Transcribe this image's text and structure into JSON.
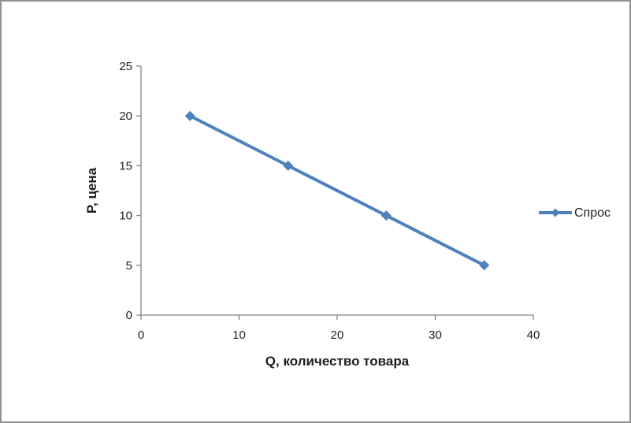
{
  "chart_data": {
    "type": "line",
    "series": [
      {
        "name": "Спрос",
        "x": [
          5,
          15,
          25,
          35
        ],
        "y": [
          20,
          15,
          10,
          5
        ],
        "color": "#4F81BD",
        "marker": "diamond",
        "line_width": 4
      }
    ],
    "xlabel": "Q, количество товара",
    "ylabel": "P, цена",
    "xlim": [
      0,
      40
    ],
    "ylim": [
      0,
      25
    ],
    "x_ticks": [
      0,
      10,
      20,
      30,
      40
    ],
    "y_ticks": [
      0,
      5,
      10,
      15,
      20,
      25
    ],
    "grid": false,
    "legend_position": "right"
  },
  "colors": {
    "series": "#4F81BD",
    "axis": "#868686",
    "tick_label": "#1F1F1F",
    "frame_border": "#919191",
    "background": "#FFFFFF"
  }
}
